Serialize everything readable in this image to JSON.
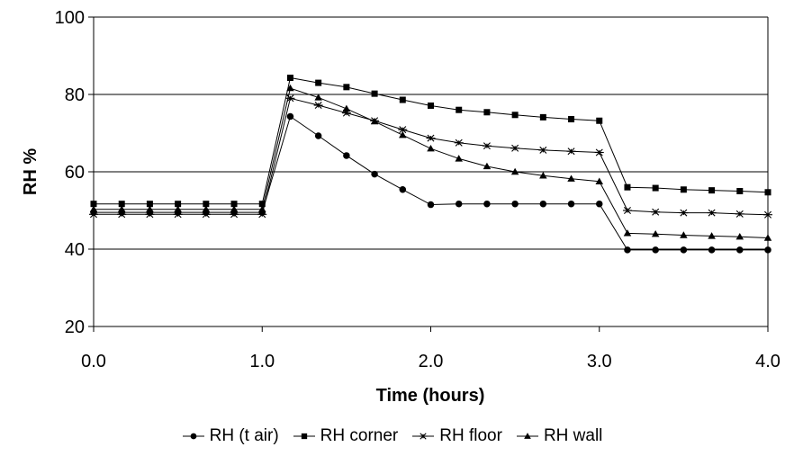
{
  "chart_data": {
    "type": "line",
    "title": "",
    "xlabel": "Time (hours)",
    "ylabel": "RH %",
    "xlim": [
      0,
      4
    ],
    "ylim": [
      20,
      100
    ],
    "x_ticks": [
      "0.0",
      "1.0",
      "2.0",
      "3.0",
      "4.0"
    ],
    "y_ticks": [
      "20",
      "40",
      "60",
      "80",
      "100"
    ],
    "grid": "horizontal",
    "legend_position": "bottom",
    "x": [
      0,
      0.1667,
      0.3333,
      0.5,
      0.6667,
      0.8333,
      1.0,
      1.1667,
      1.3333,
      1.5,
      1.6667,
      1.8333,
      2.0,
      2.1667,
      2.3333,
      2.5,
      2.6667,
      2.8333,
      3.0,
      3.1667,
      3.3333,
      3.5,
      3.6667,
      3.8333,
      4.0
    ],
    "series": [
      {
        "name": "RH (t air)",
        "marker": "circle",
        "color": "#000000",
        "values": [
          49.5,
          49.5,
          49.5,
          49.5,
          49.5,
          49.5,
          49.5,
          74.3,
          69.3,
          64.2,
          59.4,
          55.4,
          51.5,
          51.7,
          51.7,
          51.7,
          51.7,
          51.7,
          51.7,
          39.8,
          39.8,
          39.8,
          39.8,
          39.8,
          39.8
        ]
      },
      {
        "name": "RH corner",
        "marker": "square",
        "color": "#000000",
        "values": [
          51.7,
          51.7,
          51.7,
          51.7,
          51.7,
          51.7,
          51.7,
          84.3,
          83.0,
          81.9,
          80.2,
          78.6,
          77.1,
          76.0,
          75.4,
          74.7,
          74.1,
          73.6,
          73.2,
          56.0,
          55.8,
          55.4,
          55.2,
          55.0,
          54.7
        ]
      },
      {
        "name": "RH floor",
        "marker": "star",
        "color": "#000000",
        "values": [
          49.0,
          49.0,
          49.0,
          49.0,
          49.0,
          49.0,
          49.0,
          79.0,
          77.2,
          75.2,
          73.2,
          70.9,
          68.7,
          67.5,
          66.7,
          66.1,
          65.6,
          65.3,
          65.0,
          50.0,
          49.6,
          49.4,
          49.4,
          49.1,
          48.9
        ]
      },
      {
        "name": "RH wall",
        "marker": "triangle",
        "color": "#000000",
        "values": [
          50.3,
          50.3,
          50.3,
          50.3,
          50.3,
          50.3,
          50.3,
          81.6,
          79.2,
          76.3,
          73.0,
          69.5,
          66.0,
          63.4,
          61.4,
          60.0,
          59.0,
          58.2,
          57.5,
          44.1,
          43.9,
          43.6,
          43.4,
          43.2,
          42.9
        ]
      }
    ]
  }
}
